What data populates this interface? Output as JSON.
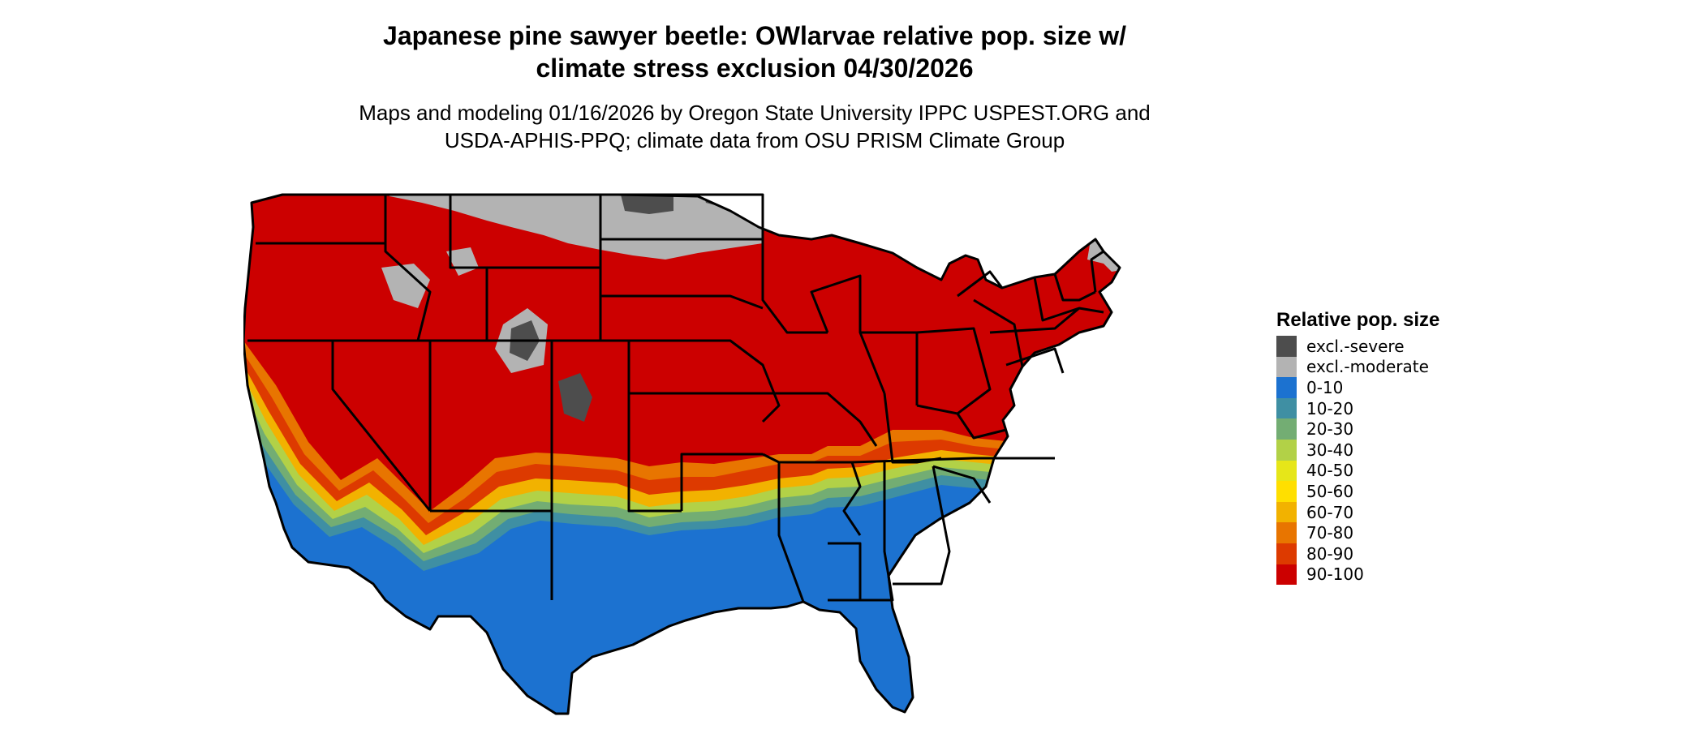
{
  "title_line1": "Japanese pine sawyer beetle: OWlarvae relative pop. size w/",
  "title_line2": "climate stress exclusion 04/30/2026",
  "subtitle_line1": "Maps and modeling 01/16/2026 by Oregon State University IPPC USPEST.ORG and",
  "subtitle_line2": "USDA-APHIS-PPQ; climate data from OSU PRISM Climate Group",
  "legend": {
    "title": "Relative pop. size",
    "items": [
      {
        "label": "excl.-severe",
        "color": "#4d4d4d"
      },
      {
        "label": "excl.-moderate",
        "color": "#b3b3b3"
      },
      {
        "label": "0-10",
        "color": "#1c72d0"
      },
      {
        "label": "10-20",
        "color": "#3f8fa3"
      },
      {
        "label": "20-30",
        "color": "#73ad73"
      },
      {
        "label": "30-40",
        "color": "#b2d147"
      },
      {
        "label": "40-50",
        "color": "#e6e619"
      },
      {
        "label": "50-60",
        "color": "#ffdf00"
      },
      {
        "label": "60-70",
        "color": "#f2b200"
      },
      {
        "label": "70-80",
        "color": "#e87500"
      },
      {
        "label": "80-90",
        "color": "#dd3a00"
      },
      {
        "label": "90-100",
        "color": "#cc0000"
      }
    ]
  }
}
